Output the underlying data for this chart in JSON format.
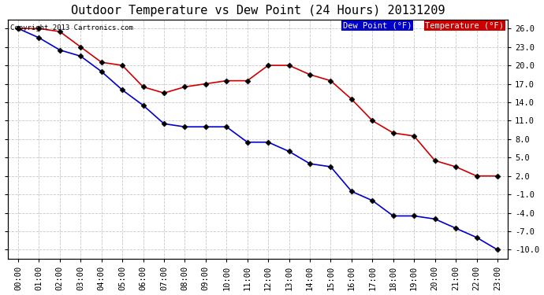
{
  "title": "Outdoor Temperature vs Dew Point (24 Hours) 20131209",
  "copyright": "Copyright 2013 Cartronics.com",
  "background_color": "#ffffff",
  "plot_bg_color": "#ffffff",
  "grid_color": "#c8c8c8",
  "x_labels": [
    "00:00",
    "01:00",
    "02:00",
    "03:00",
    "04:00",
    "05:00",
    "06:00",
    "07:00",
    "08:00",
    "09:00",
    "10:00",
    "11:00",
    "12:00",
    "13:00",
    "14:00",
    "15:00",
    "16:00",
    "17:00",
    "18:00",
    "19:00",
    "20:00",
    "21:00",
    "22:00",
    "23:00"
  ],
  "temperature": [
    26.0,
    26.0,
    25.5,
    23.0,
    20.5,
    20.0,
    16.5,
    15.5,
    16.5,
    17.0,
    17.5,
    17.5,
    20.0,
    20.0,
    18.5,
    17.5,
    14.5,
    11.0,
    9.0,
    8.5,
    4.5,
    3.5,
    2.0,
    2.0
  ],
  "dew_point": [
    26.0,
    24.5,
    22.5,
    21.5,
    19.0,
    16.0,
    13.5,
    10.5,
    10.0,
    10.0,
    10.0,
    7.5,
    7.5,
    6.0,
    4.0,
    3.5,
    -0.5,
    -2.0,
    -4.5,
    -4.5,
    -5.0,
    -6.5,
    -8.0,
    -10.0
  ],
  "temp_color": "#cc0000",
  "dew_color": "#0000cc",
  "marker_size": 3.5,
  "ylim_min": -11.5,
  "ylim_max": 27.5,
  "yticks": [
    -10.0,
    -7.0,
    -4.0,
    -1.0,
    2.0,
    5.0,
    8.0,
    11.0,
    14.0,
    17.0,
    20.0,
    23.0,
    26.0
  ],
  "legend_dew_label": "Dew Point (°F)",
  "legend_temp_label": "Temperature (°F)",
  "legend_dew_bg": "#0000cc",
  "legend_temp_bg": "#cc0000",
  "title_fontsize": 11,
  "tick_fontsize": 7.5,
  "copyright_fontsize": 6.5
}
